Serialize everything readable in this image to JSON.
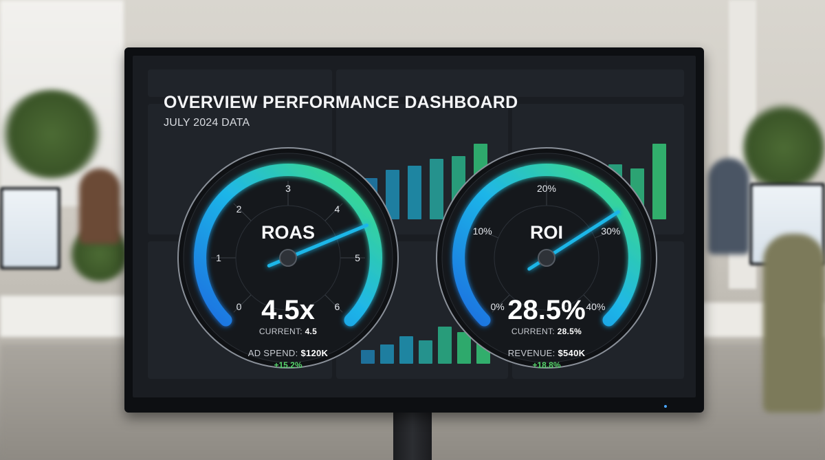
{
  "dashboard": {
    "title": "OVERVIEW PERFORMANCE DASHBOARD",
    "subtitle": "JULY 2024 DATA"
  },
  "gauges": [
    {
      "label": "ROAS",
      "value_text": "4.5x",
      "current_label": "CURRENT:",
      "current_value": "4.5",
      "extra_label": "AD SPEND:",
      "extra_value": "$120K",
      "change": "+15.2%",
      "ticks": [
        "0",
        "1",
        "2",
        "3",
        "4",
        "5",
        "6"
      ],
      "min": 0,
      "max": 6,
      "value": 4.5
    },
    {
      "label": "ROI",
      "value_text": "28.5%",
      "current_label": "CURRENT:",
      "current_value": "28.5%",
      "extra_label": "REVENUE:",
      "extra_value": "$540K",
      "change": "+18.8%",
      "ticks": [
        "0%",
        "10%",
        "20%",
        "30%",
        "40%"
      ],
      "min": 0,
      "max": 40,
      "value": 28.5
    }
  ],
  "colors": {
    "arc_start": "#1f6fe0",
    "arc_mid": "#1fb6e8",
    "arc_end": "#3fe07a",
    "positive": "#56d46b"
  }
}
